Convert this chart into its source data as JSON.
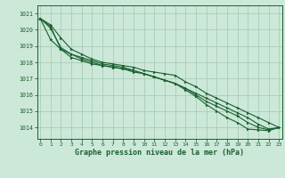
{
  "title": "Graphe pression niveau de la mer (hPa)",
  "background_color": "#cce8d8",
  "grid_color": "#aaccb8",
  "line_color": "#1a6030",
  "marker_color": "#1a6030",
  "xlim": [
    -0.3,
    23.3
  ],
  "ylim": [
    1013.3,
    1021.5
  ],
  "yticks": [
    1014,
    1015,
    1016,
    1017,
    1018,
    1019,
    1020,
    1021
  ],
  "xticks": [
    0,
    1,
    2,
    3,
    4,
    5,
    6,
    7,
    8,
    9,
    10,
    11,
    12,
    13,
    14,
    15,
    16,
    17,
    18,
    19,
    20,
    21,
    22,
    23
  ],
  "series": [
    [
      1020.7,
      1020.3,
      1019.5,
      1018.8,
      1018.5,
      1018.2,
      1018.0,
      1017.9,
      1017.8,
      1017.7,
      1017.5,
      1017.4,
      1017.3,
      1017.2,
      1016.8,
      1016.5,
      1016.1,
      1015.8,
      1015.5,
      1015.2,
      1014.9,
      1014.6,
      1014.3,
      1014.0
    ],
    [
      1020.7,
      1020.2,
      1018.8,
      1018.3,
      1018.1,
      1017.9,
      1017.8,
      1017.7,
      1017.6,
      1017.4,
      1017.3,
      1017.1,
      1016.9,
      1016.7,
      1016.4,
      1016.1,
      1015.8,
      1015.5,
      1015.2,
      1014.9,
      1014.6,
      1014.2,
      1013.9,
      1014.0
    ],
    [
      1020.7,
      1020.1,
      1018.9,
      1018.5,
      1018.2,
      1018.0,
      1017.8,
      1017.7,
      1017.6,
      1017.5,
      1017.3,
      1017.1,
      1016.9,
      1016.7,
      1016.4,
      1016.0,
      1015.6,
      1015.3,
      1015.0,
      1014.7,
      1014.3,
      1014.0,
      1013.85,
      1014.0
    ],
    [
      1020.7,
      1019.4,
      1018.8,
      1018.5,
      1018.3,
      1018.1,
      1017.9,
      1017.8,
      1017.7,
      1017.5,
      1017.3,
      1017.1,
      1016.9,
      1016.7,
      1016.3,
      1015.9,
      1015.4,
      1015.0,
      1014.6,
      1014.3,
      1013.9,
      1013.85,
      1013.8,
      1014.0
    ]
  ]
}
